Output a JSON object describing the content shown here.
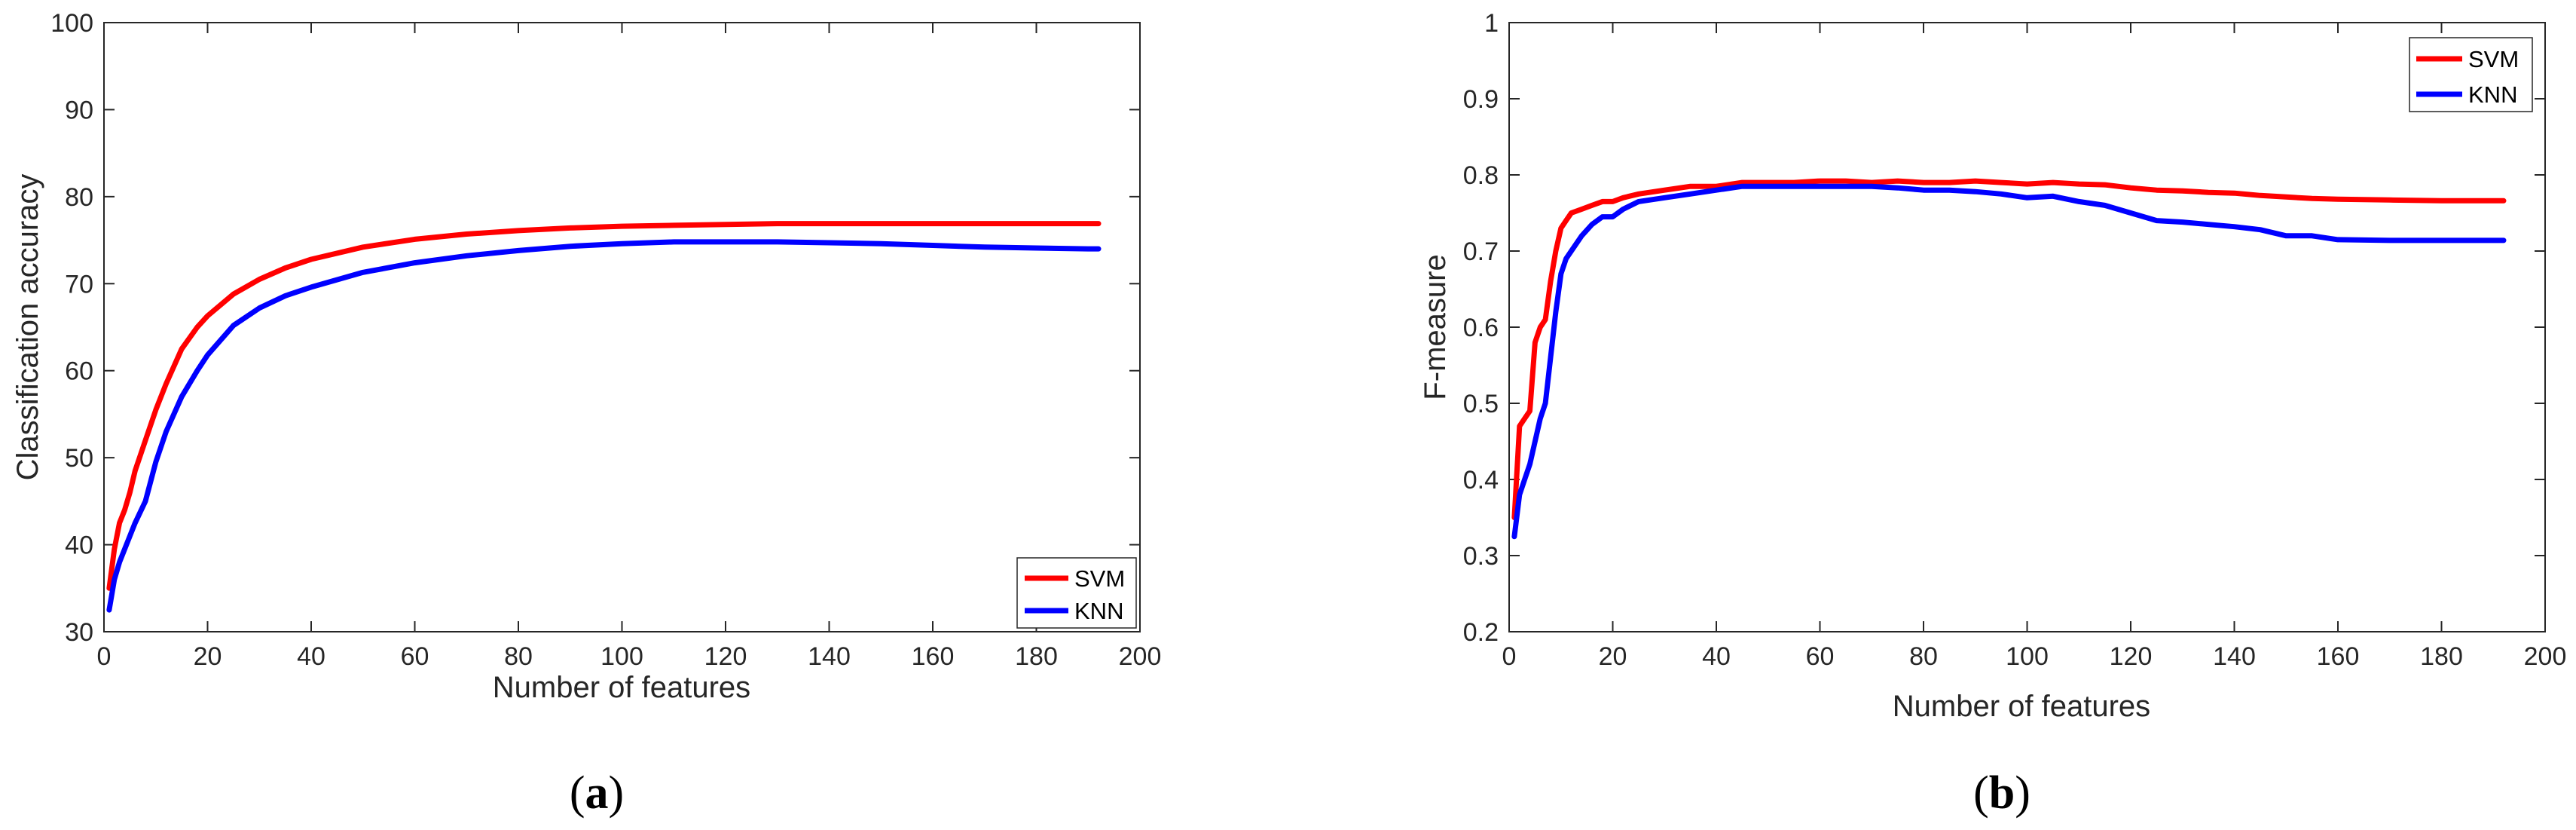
{
  "chart_data": [
    {
      "type": "line",
      "panel_label": "a",
      "xlabel": "Number of features",
      "ylabel": "Classification accuracy",
      "xlim": [
        0,
        200
      ],
      "ylim": [
        30,
        100
      ],
      "xticks": [
        0,
        20,
        40,
        60,
        80,
        100,
        120,
        140,
        160,
        180,
        200
      ],
      "yticks": [
        30,
        40,
        50,
        60,
        70,
        80,
        90,
        100
      ],
      "grid": false,
      "legend_position": "bottom-right",
      "series": [
        {
          "name": "SVM",
          "color": "#ff0000",
          "x": [
            1,
            2,
            3,
            4,
            5,
            6,
            8,
            10,
            12,
            15,
            18,
            20,
            25,
            30,
            35,
            40,
            50,
            60,
            70,
            80,
            90,
            100,
            110,
            120,
            130,
            140,
            150,
            160,
            170,
            180,
            190,
            192
          ],
          "y": [
            35,
            39.5,
            42.5,
            44,
            46,
            48.5,
            52,
            55.5,
            58.5,
            62.5,
            65,
            66.3,
            68.8,
            70.5,
            71.8,
            72.8,
            74.2,
            75.1,
            75.7,
            76.1,
            76.4,
            76.6,
            76.7,
            76.8,
            76.9,
            76.9,
            76.9,
            76.9,
            76.9,
            76.9,
            76.9,
            76.9
          ]
        },
        {
          "name": "KNN",
          "color": "#0000ff",
          "x": [
            1,
            2,
            3,
            4,
            5,
            6,
            8,
            10,
            12,
            15,
            18,
            20,
            25,
            30,
            35,
            40,
            50,
            60,
            70,
            80,
            90,
            100,
            110,
            120,
            130,
            140,
            150,
            160,
            170,
            180,
            190,
            192
          ],
          "y": [
            32.5,
            36,
            38,
            39.5,
            41,
            42.5,
            45,
            49.5,
            53,
            57,
            60,
            61.8,
            65.2,
            67.2,
            68.6,
            69.6,
            71.3,
            72.4,
            73.2,
            73.8,
            74.3,
            74.6,
            74.8,
            74.8,
            74.8,
            74.7,
            74.6,
            74.4,
            74.2,
            74.1,
            74.0,
            74.0
          ]
        }
      ]
    },
    {
      "type": "line",
      "panel_label": "b",
      "xlabel": "Number of features",
      "ylabel": "F-measure",
      "xlim": [
        0,
        200
      ],
      "ylim": [
        0.2,
        1
      ],
      "xticks": [
        0,
        20,
        40,
        60,
        80,
        100,
        120,
        140,
        160,
        180,
        200
      ],
      "yticks": [
        0.2,
        0.3,
        0.4,
        0.5,
        0.6,
        0.7,
        0.8,
        0.9,
        1
      ],
      "ytick_labels": [
        "0.2",
        "0.3",
        "0.4",
        "0.5",
        "0.6",
        "0.7",
        "0.8",
        "0.9",
        "1"
      ],
      "grid": false,
      "legend_position": "top-right",
      "series": [
        {
          "name": "SVM",
          "color": "#ff0000",
          "x": [
            1,
            2,
            3,
            4,
            5,
            6,
            7,
            8,
            9,
            10,
            11,
            12,
            14,
            16,
            18,
            20,
            22,
            25,
            30,
            35,
            40,
            45,
            50,
            55,
            60,
            65,
            70,
            75,
            80,
            85,
            90,
            95,
            100,
            105,
            110,
            115,
            120,
            125,
            130,
            135,
            140,
            145,
            150,
            155,
            160,
            170,
            180,
            190,
            192
          ],
          "y": [
            0.35,
            0.47,
            0.48,
            0.49,
            0.58,
            0.6,
            0.61,
            0.66,
            0.7,
            0.73,
            0.74,
            0.75,
            0.755,
            0.76,
            0.765,
            0.765,
            0.77,
            0.775,
            0.78,
            0.785,
            0.785,
            0.79,
            0.79,
            0.79,
            0.792,
            0.792,
            0.79,
            0.792,
            0.79,
            0.79,
            0.792,
            0.79,
            0.788,
            0.79,
            0.788,
            0.787,
            0.783,
            0.78,
            0.779,
            0.777,
            0.776,
            0.773,
            0.771,
            0.769,
            0.768,
            0.767,
            0.766,
            0.766,
            0.766
          ]
        },
        {
          "name": "KNN",
          "color": "#0000ff",
          "x": [
            1,
            2,
            3,
            4,
            5,
            6,
            7,
            8,
            9,
            10,
            11,
            12,
            14,
            16,
            18,
            20,
            22,
            25,
            30,
            35,
            40,
            45,
            50,
            55,
            60,
            65,
            70,
            75,
            80,
            85,
            90,
            95,
            100,
            105,
            110,
            115,
            120,
            125,
            130,
            135,
            140,
            145,
            150,
            155,
            160,
            170,
            180,
            190,
            192
          ],
          "y": [
            0.325,
            0.38,
            0.4,
            0.42,
            0.45,
            0.48,
            0.5,
            0.56,
            0.62,
            0.67,
            0.69,
            0.7,
            0.72,
            0.735,
            0.745,
            0.745,
            0.755,
            0.765,
            0.77,
            0.775,
            0.78,
            0.785,
            0.785,
            0.785,
            0.785,
            0.785,
            0.785,
            0.783,
            0.78,
            0.78,
            0.778,
            0.775,
            0.77,
            0.772,
            0.765,
            0.76,
            0.75,
            0.74,
            0.738,
            0.735,
            0.732,
            0.728,
            0.72,
            0.72,
            0.715,
            0.714,
            0.714,
            0.714,
            0.714
          ]
        }
      ]
    }
  ]
}
